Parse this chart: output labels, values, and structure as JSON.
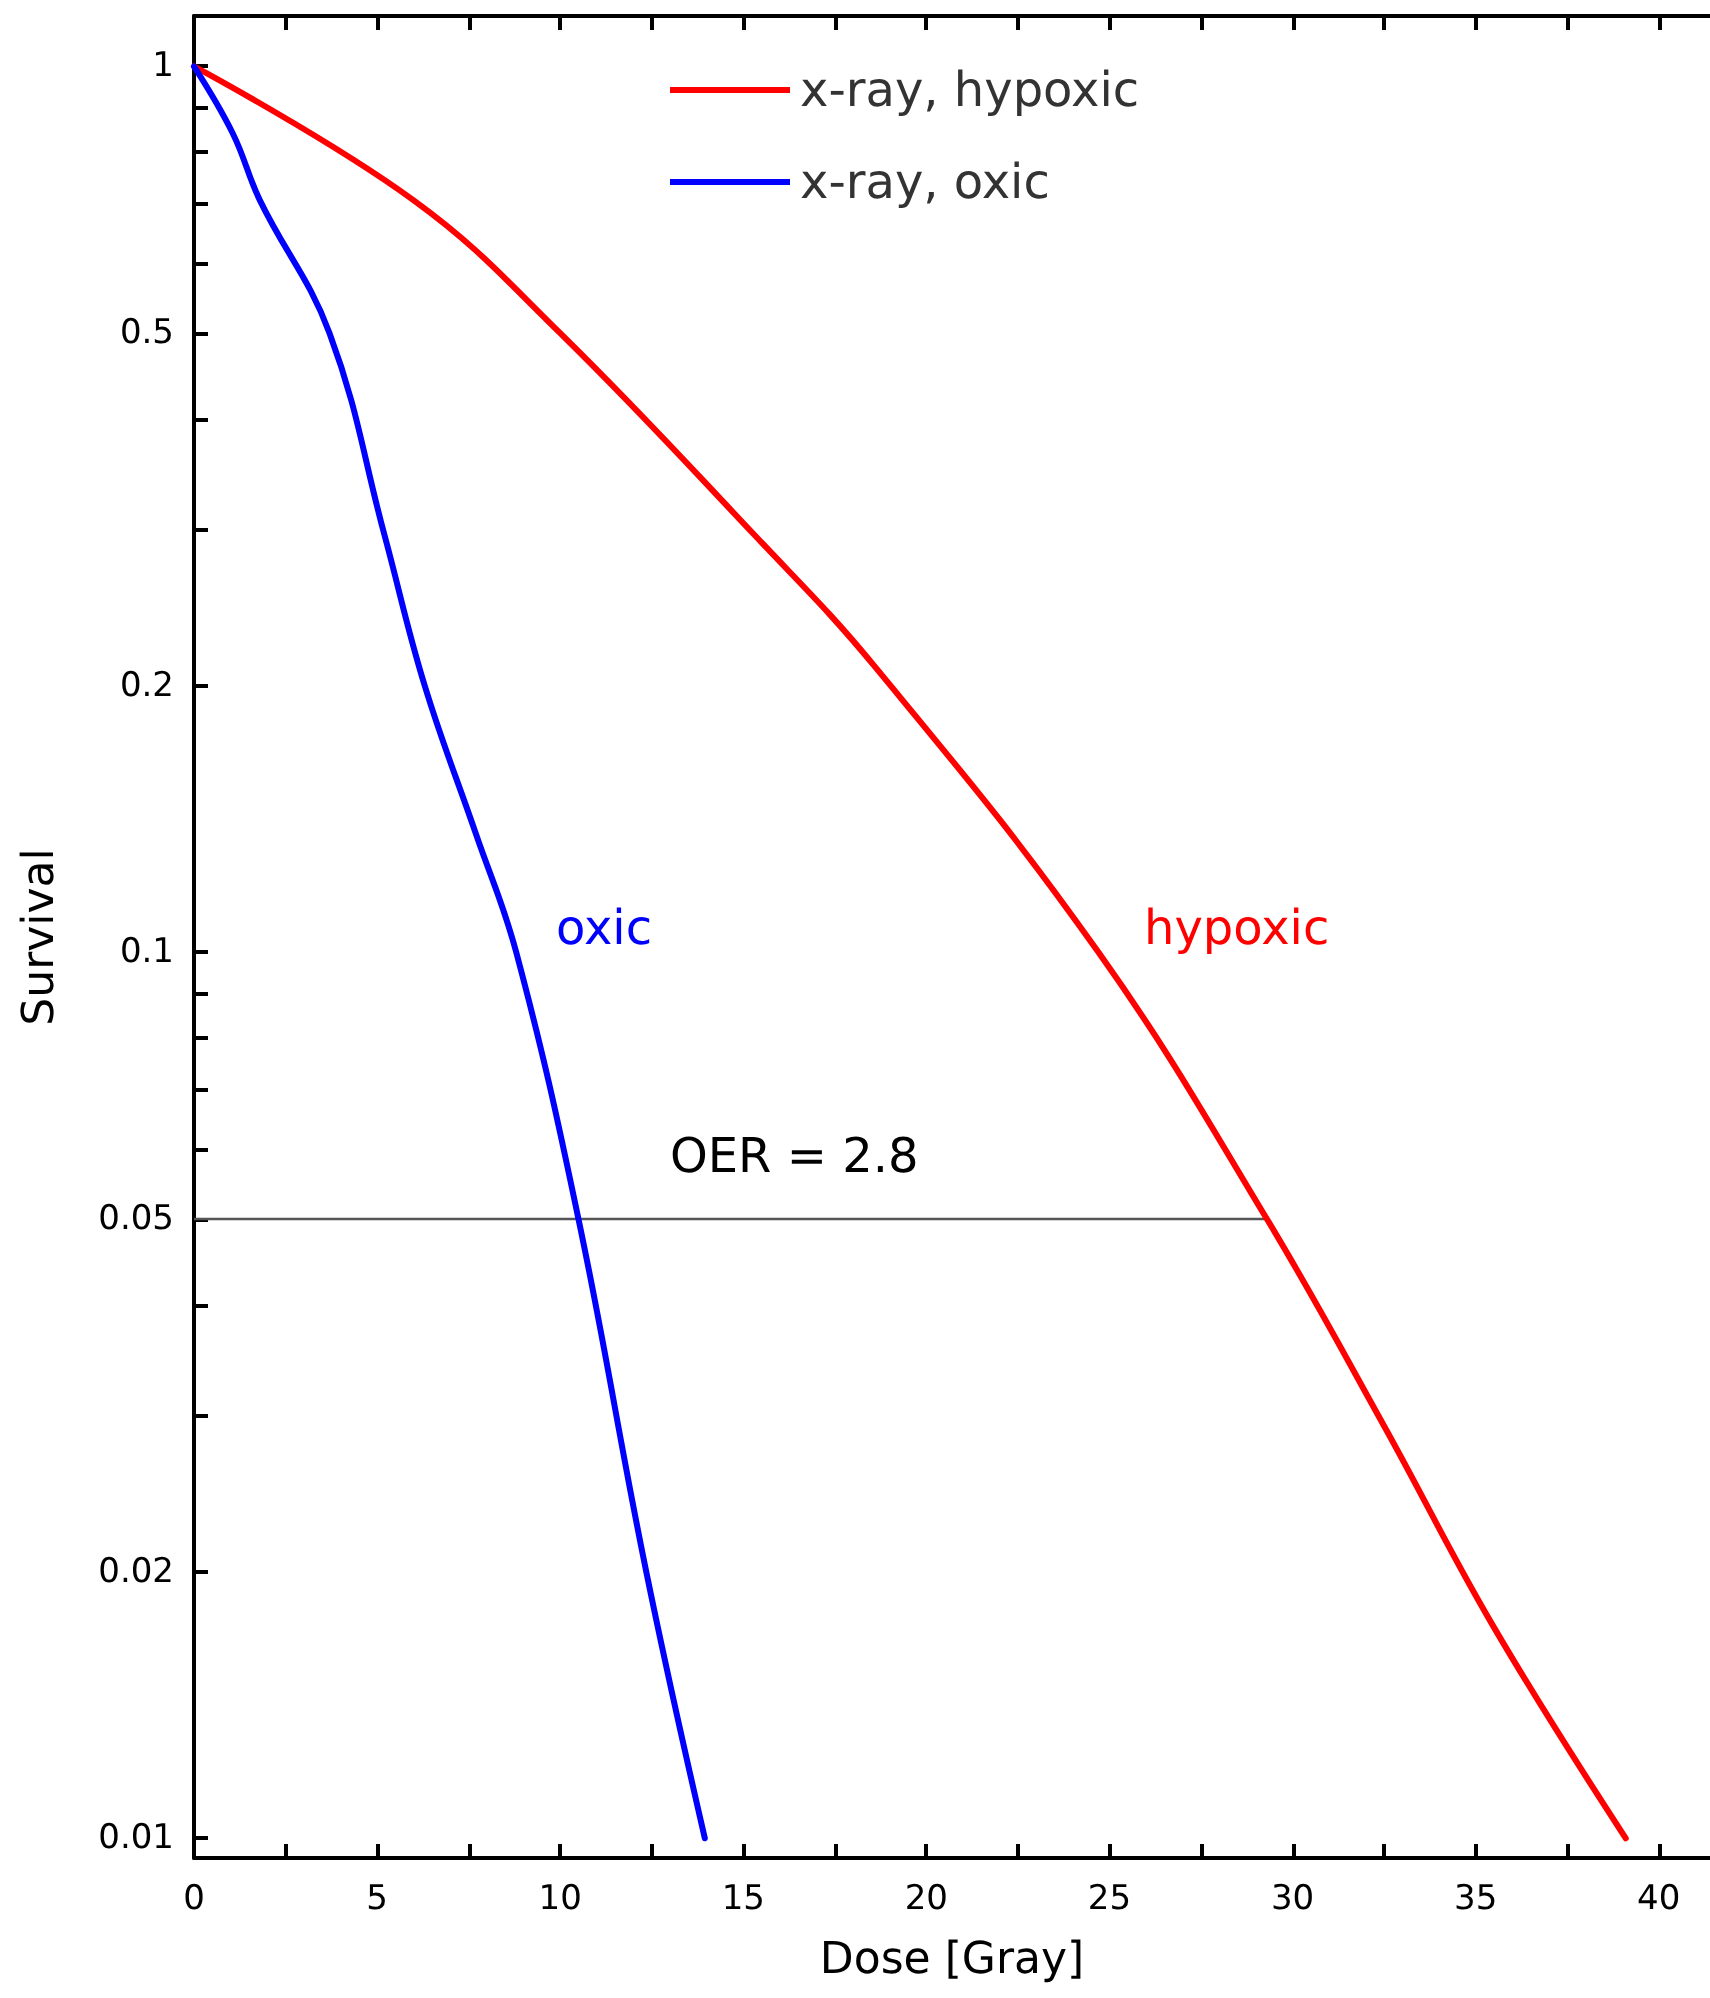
{
  "chart_data": {
    "type": "line",
    "xlabel": "Dose [Gray]",
    "ylabel": "Survival",
    "log": "y",
    "xlim": [
      0,
      41.4
    ],
    "xticks": [
      0,
      {
        "value": 2.5,
        "label": null
      },
      5,
      {
        "value": 7.5,
        "label": null
      },
      10,
      {
        "value": 12.5,
        "label": null
      },
      15,
      {
        "value": 17.5,
        "label": null
      },
      20,
      {
        "value": 22.5,
        "label": null
      },
      25,
      {
        "value": 27.5,
        "label": null
      },
      30,
      {
        "value": 32.5,
        "label": null
      },
      35,
      {
        "value": 37.5,
        "label": null
      },
      40
    ],
    "ylim": [
      0.0095,
      1.14
    ],
    "yticks": [
      0.01,
      0.02,
      {
        "value": 0.03,
        "label": null
      },
      {
        "value": 0.04,
        "label": null
      },
      0.05,
      {
        "value": 0.06,
        "label": null
      },
      {
        "value": 0.07,
        "label": null
      },
      {
        "value": 0.08,
        "label": null
      },
      {
        "value": 0.09,
        "label": null
      },
      0.1,
      0.2,
      {
        "value": 0.3,
        "label": null
      },
      {
        "value": 0.4,
        "label": null
      },
      0.5,
      {
        "value": 0.6,
        "label": null
      },
      {
        "value": 0.7,
        "label": null
      },
      {
        "value": 0.8,
        "label": null
      },
      {
        "value": 0.9,
        "label": null
      },
      1
    ],
    "grid": false,
    "legend": "top",
    "marker": "none",
    "line_style": "solid",
    "series": [
      {
        "name": "x-ray, hypoxic",
        "color": "#ff0000",
        "x": [
          0,
          6.0,
          10,
          15.3,
          18.6,
          24.7,
          29.3,
          32.5,
          35.5,
          39.1
        ],
        "values": [
          1,
          0.706,
          0.5,
          0.296,
          0.21,
          0.1,
          0.05,
          0.0292,
          0.0173,
          0.01
        ]
      },
      {
        "name": "x-ray, oxic",
        "color": "#0000ff",
        "x": [
          0,
          1.06,
          1.8,
          3.7,
          5.2,
          6.3,
          7.7,
          8.8,
          10.5,
          12.35,
          13.95
        ],
        "values": [
          1,
          0.84,
          0.706,
          0.5,
          0.296,
          0.2,
          0.136,
          0.1,
          0.05,
          0.02,
          0.01
        ]
      }
    ],
    "ref_lines": [
      {
        "axis": "y",
        "value": 0.05,
        "color": "#555555",
        "line_style": "solid"
      }
    ],
    "annotations": [
      "oxic",
      "hypoxic",
      "OER = 2.8"
    ]
  }
}
